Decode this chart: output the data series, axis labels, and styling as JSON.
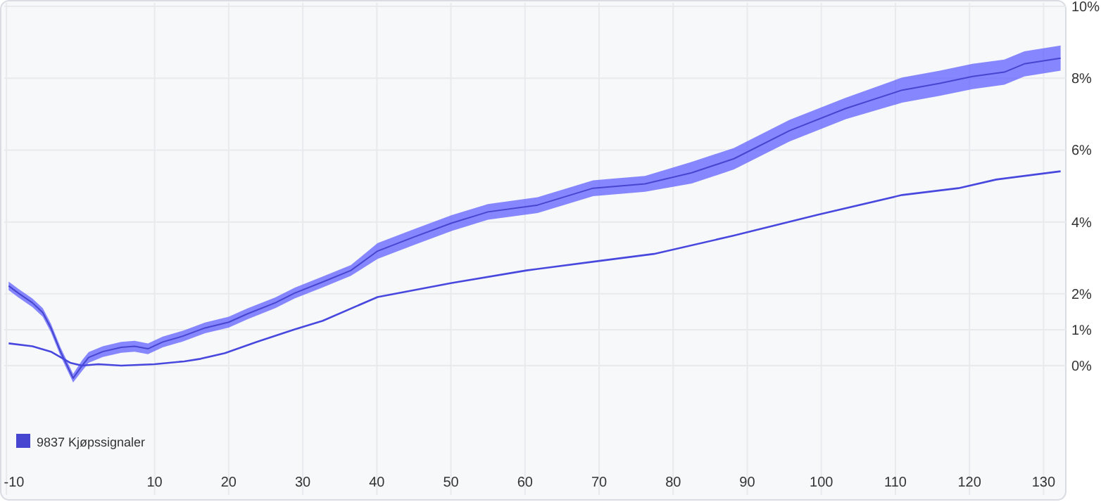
{
  "chart_data": {
    "type": "line",
    "xlim": [
      -10.3,
      133
    ],
    "ylim": [
      -3.6,
      10.1
    ],
    "xticks": [
      {
        "value": -10,
        "label": "-10"
      },
      10,
      20,
      30,
      40,
      50,
      60,
      70,
      80,
      90,
      100,
      110,
      120,
      130
    ],
    "yticks": [
      {
        "value": 0,
        "label": "0%"
      },
      {
        "value": 1,
        "label": "1%"
      },
      {
        "value": 2,
        "label": "2%"
      },
      {
        "value": 4,
        "label": "4%"
      },
      {
        "value": 6,
        "label": "6%"
      },
      {
        "value": 8,
        "label": "8%"
      },
      {
        "value": 10,
        "label": "10%"
      }
    ],
    "grid": true,
    "legend": "bottom left",
    "series": [
      {
        "name": "9837 Kjøpssignaler",
        "color": "#4646d0",
        "x": [
          -9.7,
          -8.4,
          -6.5,
          -5.1,
          -4.0,
          -2.7,
          -1.0,
          0.2,
          1.1,
          3.0,
          5.5,
          7.3,
          9.1,
          11.1,
          13.8,
          16.8,
          20.0,
          22.5,
          26.3,
          28.9,
          32.7,
          36.5,
          40.1,
          45.0,
          50.1,
          55.0,
          61.7,
          69.2,
          76.2,
          82.5,
          88.2,
          95.7,
          103.3,
          110.9,
          116.0,
          120.4,
          124.7,
          127.4,
          132.3
        ],
        "values": [
          2.22,
          2.02,
          1.75,
          1.48,
          1.05,
          0.39,
          -0.35,
          0.0,
          0.23,
          0.39,
          0.51,
          0.54,
          0.47,
          0.66,
          0.82,
          1.05,
          1.21,
          1.44,
          1.75,
          2.02,
          2.33,
          2.65,
          3.19,
          3.58,
          3.97,
          4.28,
          4.47,
          4.94,
          5.06,
          5.37,
          5.76,
          6.54,
          7.16,
          7.67,
          7.86,
          8.05,
          8.17,
          8.4,
          8.56
        ],
        "lower": [
          2.1,
          1.9,
          1.63,
          1.36,
          0.93,
          0.27,
          -0.47,
          -0.15,
          0.08,
          0.24,
          0.36,
          0.39,
          0.32,
          0.51,
          0.67,
          0.9,
          1.06,
          1.29,
          1.6,
          1.87,
          2.18,
          2.5,
          2.97,
          3.36,
          3.75,
          4.06,
          4.25,
          4.72,
          4.84,
          5.07,
          5.46,
          6.24,
          6.86,
          7.32,
          7.51,
          7.7,
          7.82,
          8.05,
          8.21
        ],
        "upper": [
          2.34,
          2.14,
          1.87,
          1.6,
          1.17,
          0.51,
          -0.23,
          0.15,
          0.38,
          0.54,
          0.66,
          0.69,
          0.62,
          0.81,
          0.97,
          1.2,
          1.36,
          1.59,
          1.9,
          2.17,
          2.48,
          2.8,
          3.41,
          3.8,
          4.19,
          4.5,
          4.69,
          5.16,
          5.28,
          5.67,
          6.06,
          6.84,
          7.46,
          8.02,
          8.21,
          8.4,
          8.52,
          8.75,
          8.91
        ]
      },
      {
        "color": "#4848de",
        "x": [
          -9.7,
          -6.5,
          -4.0,
          -1.4,
          0.2,
          2.4,
          5.5,
          10.0,
          14.0,
          16.2,
          19.5,
          23.8,
          28.9,
          32.7,
          40.1,
          50.1,
          60.2,
          70.2,
          77.4,
          88.2,
          99.5,
          110.9,
          118.5,
          123.6,
          132.3
        ],
        "values": [
          0.62,
          0.54,
          0.39,
          0.08,
          0.0,
          0.04,
          0.0,
          0.04,
          0.12,
          0.19,
          0.35,
          0.66,
          1.01,
          1.25,
          1.91,
          2.3,
          2.65,
          2.92,
          3.11,
          3.62,
          4.2,
          4.75,
          4.94,
          5.18,
          5.41
        ]
      }
    ]
  }
}
